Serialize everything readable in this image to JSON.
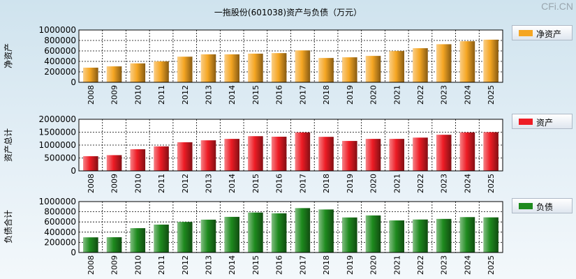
{
  "title": "一拖股份(601038)资产与负债（万元）",
  "watermark": "CFi.CN",
  "chart_data": [
    {
      "type": "bar",
      "ylabel": "净资产",
      "legend": "净资产",
      "color": "#f5a623",
      "ylim": [
        0,
        1000000
      ],
      "yticks": [
        0,
        200000,
        400000,
        600000,
        800000,
        1000000
      ],
      "categories": [
        "2008",
        "2009",
        "2010",
        "2011",
        "2012",
        "2013",
        "2014",
        "2015",
        "2016",
        "2017",
        "2018",
        "2019",
        "2020",
        "2021",
        "2022",
        "2023",
        "2024",
        "2025"
      ],
      "values": [
        280000,
        305000,
        362000,
        400000,
        490000,
        535000,
        535000,
        548000,
        558000,
        610000,
        465000,
        478000,
        505000,
        598000,
        652000,
        728000,
        785000,
        815000
      ]
    },
    {
      "type": "bar",
      "ylabel": "资产总计",
      "legend": "资产",
      "color": "#ee1c25",
      "ylim": [
        0,
        2000000
      ],
      "yticks": [
        0,
        500000,
        1000000,
        1500000,
        2000000
      ],
      "categories": [
        "2008",
        "2009",
        "2010",
        "2011",
        "2012",
        "2013",
        "2014",
        "2015",
        "2016",
        "2017",
        "2018",
        "2019",
        "2020",
        "2021",
        "2022",
        "2023",
        "2024",
        "2025"
      ],
      "values": [
        570000,
        610000,
        840000,
        950000,
        1110000,
        1185000,
        1240000,
        1345000,
        1325000,
        1490000,
        1320000,
        1160000,
        1240000,
        1240000,
        1290000,
        1400000,
        1490000,
        1500000
      ]
    },
    {
      "type": "bar",
      "ylabel": "负债合计",
      "legend": "负债",
      "color": "#1e8a1e",
      "ylim": [
        0,
        1000000
      ],
      "yticks": [
        0,
        200000,
        400000,
        600000,
        800000,
        1000000
      ],
      "categories": [
        "2008",
        "2009",
        "2010",
        "2011",
        "2012",
        "2013",
        "2014",
        "2015",
        "2016",
        "2017",
        "2018",
        "2019",
        "2020",
        "2021",
        "2022",
        "2023",
        "2024",
        "2025"
      ],
      "values": [
        298000,
        300000,
        478000,
        548000,
        600000,
        645000,
        700000,
        785000,
        770000,
        872000,
        845000,
        688000,
        728000,
        630000,
        648000,
        660000,
        695000,
        690000
      ]
    }
  ]
}
